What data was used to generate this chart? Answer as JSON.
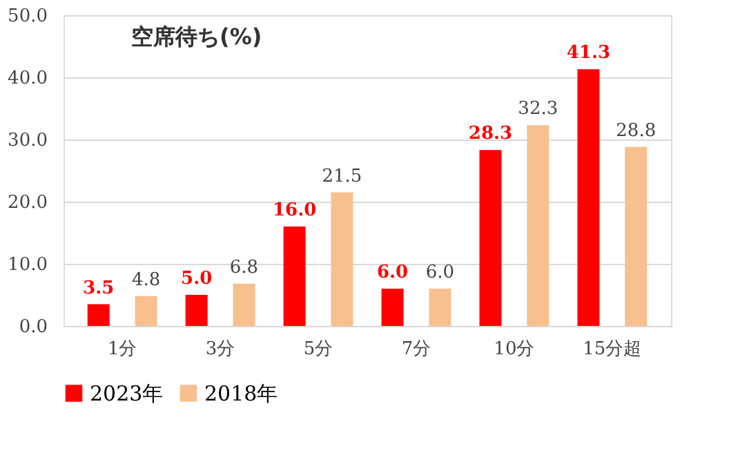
{
  "chart_data": {
    "type": "bar",
    "title": "空席待ち(%)",
    "categories": [
      "1分",
      "3分",
      "5分",
      "7分",
      "10分",
      "15分超"
    ],
    "series": [
      {
        "name": "2023年",
        "color": "#ff0000",
        "values": [
          3.5,
          5.0,
          16.0,
          6.0,
          28.3,
          41.3
        ],
        "value_labels": [
          "3.5",
          "5.0",
          "16.0",
          "6.0",
          "28.3",
          "41.3"
        ]
      },
      {
        "name": "2018年",
        "color": "#f8c08e",
        "values": [
          4.8,
          6.8,
          21.5,
          6.0,
          32.3,
          28.8
        ],
        "value_labels": [
          "4.8",
          "6.8",
          "21.5",
          "6.0",
          "32.3",
          "28.8"
        ]
      }
    ],
    "ylim": [
      0,
      50
    ],
    "yticks": [
      {
        "value": 0,
        "label": "0.0"
      },
      {
        "value": 10,
        "label": "10.0"
      },
      {
        "value": 20,
        "label": "20.0"
      },
      {
        "value": 30,
        "label": "30.0"
      },
      {
        "value": 40,
        "label": "40.0"
      },
      {
        "value": 50,
        "label": "50.0"
      }
    ],
    "grid": "y",
    "legend": "bottom"
  }
}
